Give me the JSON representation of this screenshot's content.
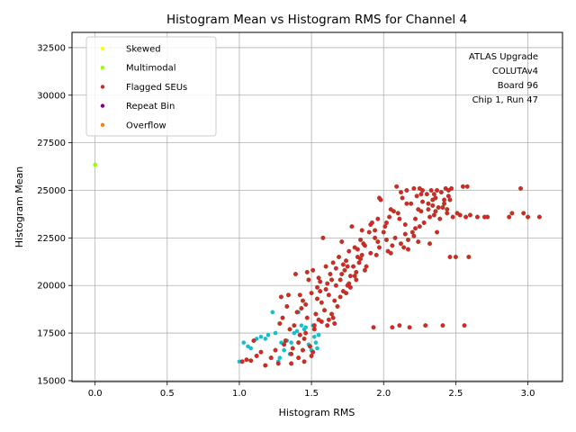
{
  "chart_data": {
    "type": "scatter",
    "title": "Histogram Mean vs Histogram RMS for Channel 4",
    "xlabel": "Histogram RMS",
    "ylabel": "Histogram Mean",
    "xlim": [
      -0.16,
      3.24
    ],
    "ylim": [
      14950,
      33300
    ],
    "xticks": [
      "0.0",
      "0.5",
      "1.0",
      "1.5",
      "2.0",
      "2.5",
      "3.0"
    ],
    "xtick_values": [
      0,
      0.5,
      1.0,
      1.5,
      2.0,
      2.5,
      3.0
    ],
    "yticks": [
      "15000",
      "17500",
      "20000",
      "22500",
      "25000",
      "27500",
      "30000",
      "32500"
    ],
    "ytick_values": [
      15000,
      17500,
      20000,
      22500,
      25000,
      27500,
      30000,
      32500
    ],
    "grid": true,
    "legend_placement": "top-left",
    "annotation_lines": [
      "ATLAS Upgrade",
      "COLUTAv4",
      "Board 96",
      "Chip 1, Run 47"
    ],
    "series": [
      {
        "name": "Skewed",
        "color": "#ffff00",
        "points": []
      },
      {
        "name": "Multimodal",
        "color": "#9aff00",
        "points": [
          [
            0.0,
            26350
          ]
        ]
      },
      {
        "name": "Flagged SEUs",
        "color": "#d62728",
        "points": [
          [
            1.02,
            16000
          ],
          [
            1.05,
            16100
          ],
          [
            1.08,
            16050
          ],
          [
            1.1,
            17100
          ],
          [
            1.12,
            16300
          ],
          [
            1.15,
            16500
          ],
          [
            1.18,
            15800
          ],
          [
            1.22,
            16200
          ],
          [
            1.25,
            16600
          ],
          [
            1.27,
            15900
          ],
          [
            1.28,
            18000
          ],
          [
            1.3,
            18300
          ],
          [
            1.32,
            17100
          ],
          [
            1.33,
            18900
          ],
          [
            1.35,
            17700
          ],
          [
            1.36,
            16400
          ],
          [
            1.38,
            17900
          ],
          [
            1.39,
            20600
          ],
          [
            1.4,
            18600
          ],
          [
            1.41,
            16200
          ],
          [
            1.42,
            17400
          ],
          [
            1.43,
            18800
          ],
          [
            1.44,
            19200
          ],
          [
            1.45,
            16000
          ],
          [
            1.46,
            17500
          ],
          [
            1.47,
            18300
          ],
          [
            1.48,
            20300
          ],
          [
            1.49,
            16800
          ],
          [
            1.5,
            19600
          ],
          [
            1.51,
            20800
          ],
          [
            1.52,
            17900
          ],
          [
            1.53,
            18500
          ],
          [
            1.54,
            19900
          ],
          [
            1.55,
            18200
          ],
          [
            1.56,
            20200
          ],
          [
            1.57,
            19100
          ],
          [
            1.58,
            22500
          ],
          [
            1.59,
            18700
          ],
          [
            1.6,
            21000
          ],
          [
            1.61,
            17900
          ],
          [
            1.62,
            19500
          ],
          [
            1.63,
            20600
          ],
          [
            1.64,
            18500
          ],
          [
            1.65,
            21200
          ],
          [
            1.66,
            19200
          ],
          [
            1.67,
            20000
          ],
          [
            1.68,
            18900
          ],
          [
            1.69,
            21500
          ],
          [
            1.7,
            20300
          ],
          [
            1.71,
            22300
          ],
          [
            1.72,
            19700
          ],
          [
            1.73,
            20800
          ],
          [
            1.74,
            21300
          ],
          [
            1.75,
            20000
          ],
          [
            1.76,
            21800
          ],
          [
            1.77,
            20500
          ],
          [
            1.78,
            23100
          ],
          [
            1.79,
            21000
          ],
          [
            1.8,
            22000
          ],
          [
            1.81,
            20700
          ],
          [
            1.82,
            21500
          ],
          [
            1.83,
            21200
          ],
          [
            1.84,
            22400
          ],
          [
            1.85,
            21600
          ],
          [
            1.87,
            22100
          ],
          [
            1.88,
            21000
          ],
          [
            1.9,
            22800
          ],
          [
            1.91,
            23200
          ],
          [
            1.93,
            17800
          ],
          [
            1.94,
            22500
          ],
          [
            1.96,
            23500
          ],
          [
            1.97,
            22000
          ],
          [
            1.98,
            24500
          ],
          [
            2.0,
            22800
          ],
          [
            2.02,
            23300
          ],
          [
            2.03,
            21800
          ],
          [
            2.05,
            24000
          ],
          [
            2.06,
            17800
          ],
          [
            2.08,
            22500
          ],
          [
            2.09,
            25200
          ],
          [
            2.1,
            23800
          ],
          [
            2.11,
            17900
          ],
          [
            2.12,
            22200
          ],
          [
            2.13,
            24600
          ],
          [
            2.15,
            23200
          ],
          [
            2.16,
            25000
          ],
          [
            2.17,
            21900
          ],
          [
            2.18,
            17800
          ],
          [
            2.19,
            24300
          ],
          [
            2.2,
            22800
          ],
          [
            2.21,
            25100
          ],
          [
            2.22,
            23500
          ],
          [
            2.23,
            24700
          ],
          [
            2.24,
            22300
          ],
          [
            2.25,
            25100
          ],
          [
            2.26,
            23900
          ],
          [
            2.27,
            24400
          ],
          [
            2.28,
            23300
          ],
          [
            2.29,
            17900
          ],
          [
            2.3,
            24800
          ],
          [
            2.31,
            24000
          ],
          [
            2.32,
            22200
          ],
          [
            2.33,
            25000
          ],
          [
            2.34,
            24200
          ],
          [
            2.35,
            23700
          ],
          [
            2.36,
            24600
          ],
          [
            2.37,
            25000
          ],
          [
            2.38,
            24100
          ],
          [
            2.39,
            23500
          ],
          [
            2.4,
            24900
          ],
          [
            2.41,
            17900
          ],
          [
            2.42,
            24300
          ],
          [
            2.43,
            25100
          ],
          [
            2.44,
            23800
          ],
          [
            2.45,
            24700
          ],
          [
            2.46,
            21500
          ],
          [
            2.47,
            25100
          ],
          [
            2.48,
            23600
          ],
          [
            2.5,
            21500
          ],
          [
            2.51,
            23800
          ],
          [
            2.53,
            23700
          ],
          [
            2.55,
            25200
          ],
          [
            2.56,
            17900
          ],
          [
            2.57,
            23600
          ],
          [
            2.58,
            25200
          ],
          [
            2.59,
            21500
          ],
          [
            2.6,
            23700
          ],
          [
            2.65,
            23600
          ],
          [
            2.7,
            23600
          ],
          [
            2.72,
            23600
          ],
          [
            2.87,
            23600
          ],
          [
            2.89,
            23800
          ],
          [
            2.95,
            25100
          ],
          [
            2.97,
            23800
          ],
          [
            3.0,
            23600
          ],
          [
            3.08,
            23600
          ],
          [
            1.45,
            17200
          ],
          [
            1.5,
            16300
          ],
          [
            1.55,
            20400
          ],
          [
            1.6,
            19800
          ],
          [
            1.65,
            18300
          ],
          [
            1.7,
            19400
          ],
          [
            1.75,
            21000
          ],
          [
            1.8,
            20500
          ],
          [
            1.85,
            22900
          ],
          [
            1.95,
            21600
          ],
          [
            2.05,
            21700
          ],
          [
            2.15,
            22700
          ],
          [
            2.25,
            23100
          ],
          [
            2.35,
            24800
          ],
          [
            2.45,
            25000
          ],
          [
            1.37,
            16700
          ],
          [
            1.42,
            19500
          ],
          [
            1.47,
            20700
          ],
          [
            1.52,
            17700
          ],
          [
            1.57,
            18100
          ],
          [
            1.62,
            18200
          ],
          [
            1.67,
            20900
          ],
          [
            1.72,
            21100
          ],
          [
            1.77,
            19900
          ],
          [
            1.82,
            21900
          ],
          [
            1.87,
            20800
          ],
          [
            1.92,
            23300
          ],
          [
            1.97,
            24600
          ],
          [
            2.02,
            22400
          ],
          [
            2.07,
            23900
          ],
          [
            2.12,
            24900
          ],
          [
            2.17,
            22400
          ],
          [
            2.22,
            23000
          ],
          [
            2.27,
            25000
          ],
          [
            2.32,
            23600
          ],
          [
            2.37,
            22800
          ],
          [
            2.42,
            24500
          ],
          [
            1.34,
            19500
          ],
          [
            1.44,
            16600
          ],
          [
            1.54,
            19300
          ],
          [
            1.64,
            20300
          ],
          [
            1.74,
            19600
          ],
          [
            1.84,
            21400
          ],
          [
            1.94,
            22900
          ],
          [
            2.04,
            23600
          ],
          [
            2.14,
            22000
          ],
          [
            2.24,
            24000
          ],
          [
            2.34,
            24500
          ],
          [
            2.44,
            24000
          ],
          [
            1.29,
            19400
          ],
          [
            1.31,
            16900
          ],
          [
            1.36,
            15900
          ],
          [
            1.41,
            17000
          ],
          [
            1.46,
            19000
          ],
          [
            1.51,
            16500
          ],
          [
            1.56,
            19700
          ],
          [
            1.61,
            20100
          ],
          [
            1.66,
            18000
          ],
          [
            1.71,
            20600
          ],
          [
            1.76,
            20100
          ],
          [
            1.81,
            20300
          ],
          [
            1.86,
            22200
          ],
          [
            1.91,
            21700
          ],
          [
            1.96,
            22300
          ],
          [
            2.01,
            23100
          ],
          [
            2.06,
            22100
          ],
          [
            2.11,
            23500
          ],
          [
            2.16,
            24300
          ],
          [
            2.21,
            22600
          ],
          [
            2.26,
            24800
          ],
          [
            2.31,
            24300
          ],
          [
            2.36,
            23900
          ],
          [
            2.41,
            24100
          ],
          [
            2.46,
            24500
          ]
        ]
      },
      {
        "name": "Repeat Bin",
        "color": "#800080",
        "points": []
      },
      {
        "name": "Overflow",
        "color": "#ff7f0e",
        "points": []
      },
      {
        "name": "",
        "color": "#17becf",
        "points": [
          [
            1.0,
            16000
          ],
          [
            1.03,
            17000
          ],
          [
            1.06,
            16800
          ],
          [
            1.08,
            16700
          ],
          [
            1.12,
            17200
          ],
          [
            1.15,
            17300
          ],
          [
            1.18,
            17200
          ],
          [
            1.2,
            17400
          ],
          [
            1.23,
            18600
          ],
          [
            1.25,
            17500
          ],
          [
            1.27,
            16000
          ],
          [
            1.29,
            17000
          ],
          [
            1.31,
            16600
          ],
          [
            1.33,
            17100
          ],
          [
            1.35,
            16400
          ],
          [
            1.38,
            17500
          ],
          [
            1.4,
            17600
          ],
          [
            1.43,
            17900
          ],
          [
            1.45,
            17700
          ],
          [
            1.48,
            16900
          ],
          [
            1.5,
            16600
          ],
          [
            1.52,
            17300
          ],
          [
            1.53,
            17000
          ],
          [
            1.55,
            17400
          ],
          [
            1.28,
            16200
          ],
          [
            1.36,
            17000
          ],
          [
            1.41,
            18600
          ],
          [
            1.46,
            17800
          ],
          [
            1.51,
            17900
          ],
          [
            1.54,
            16700
          ]
        ]
      }
    ]
  }
}
